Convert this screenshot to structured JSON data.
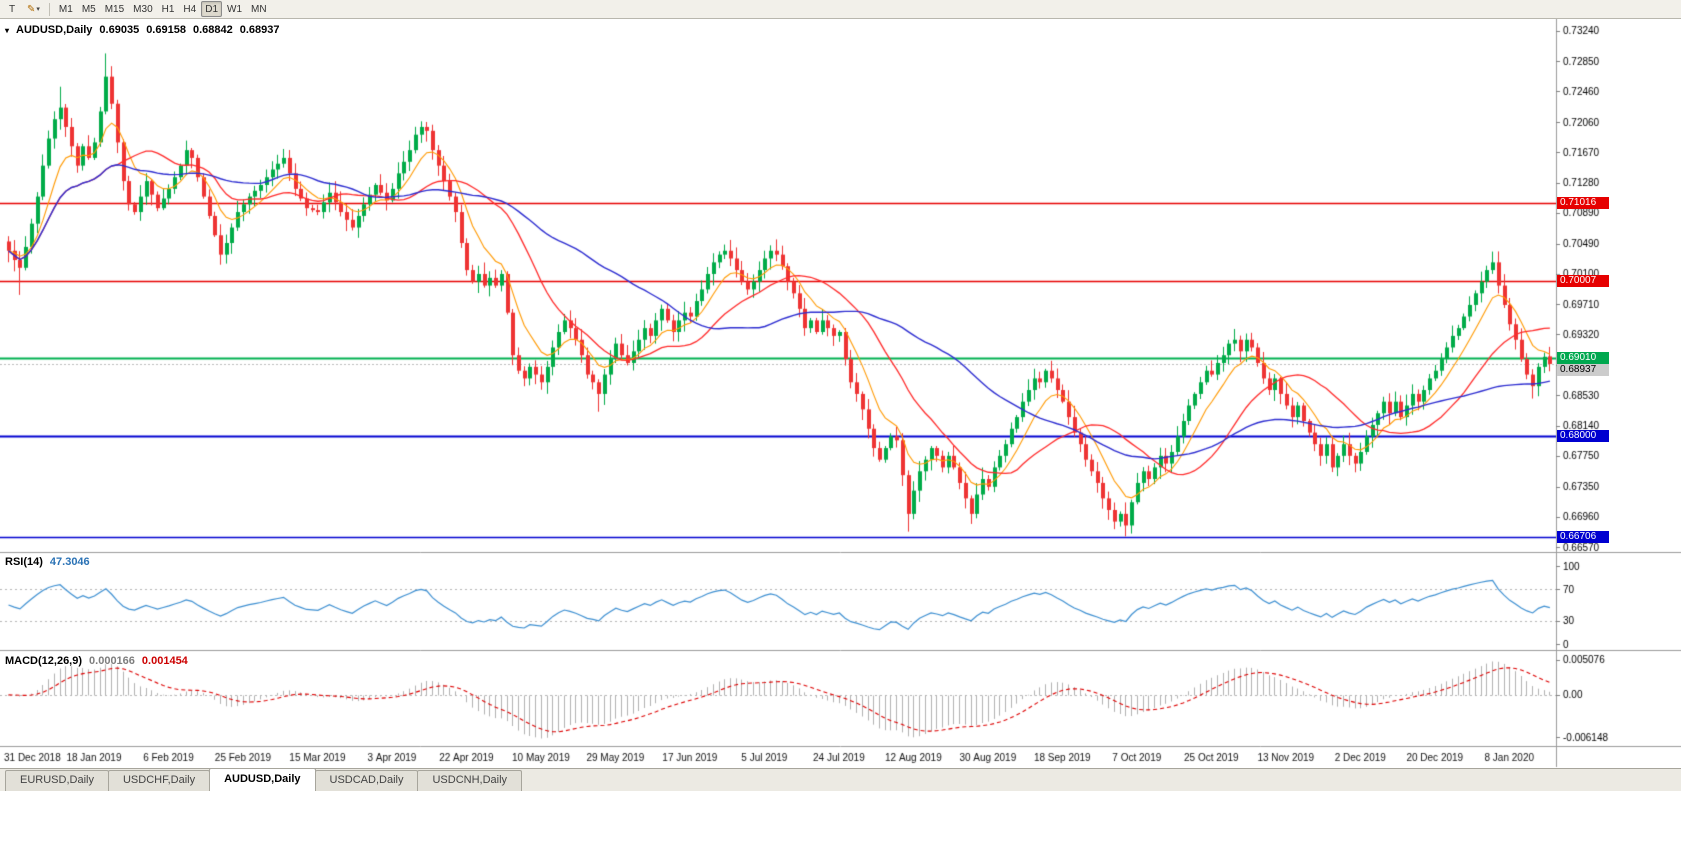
{
  "toolbar": {
    "text_tool_label": "T",
    "timeframes": [
      "M1",
      "M5",
      "M15",
      "M30",
      "H1",
      "H4",
      "D1",
      "W1",
      "MN"
    ],
    "active_timeframe": "D1"
  },
  "chart_header": {
    "symbol": "AUDUSD,Daily",
    "open": "0.69035",
    "high": "0.69158",
    "low": "0.68842",
    "close": "0.68937"
  },
  "price_axis": {
    "ticks": [
      "0.73240",
      "0.72850",
      "0.72460",
      "0.72060",
      "0.71670",
      "0.71280",
      "0.70890",
      "0.70490",
      "0.70100",
      "0.69710",
      "0.69320",
      "0.68930",
      "0.68530",
      "0.68140",
      "0.67750",
      "0.67350",
      "0.66960",
      "0.66570"
    ]
  },
  "price_tags": [
    {
      "value": "0.71016",
      "bg": "#e60000",
      "fg": "#ffffff",
      "draggable": true
    },
    {
      "value": "0.70007",
      "bg": "#e60000",
      "fg": "#ffffff",
      "draggable": true
    },
    {
      "value": "0.69010",
      "bg": "#00a84f",
      "fg": "#ffffff",
      "draggable": true
    },
    {
      "value": "0.68937",
      "bg": "#cccccc",
      "fg": "#000000",
      "draggable": false
    },
    {
      "value": "0.68000",
      "bg": "#0000d0",
      "fg": "#ffffff",
      "draggable": true
    },
    {
      "value": "0.66706",
      "bg": "#0000d0",
      "fg": "#ffffff",
      "draggable": true
    }
  ],
  "rsi": {
    "label": "RSI(14)",
    "value": "47.3046",
    "color": "#3d8fd1",
    "ticks": [
      "100",
      "70",
      "30",
      "0"
    ],
    "levels": [
      70,
      30
    ]
  },
  "macd": {
    "label": "MACD(12,26,9)",
    "value_main": "0.000166",
    "value_signal": "0.001454",
    "ticks": [
      "0.005076",
      "0.00",
      "-0.006148"
    ]
  },
  "date_axis": {
    "labels": [
      "31 Dec 2018",
      "18 Jan 2019",
      "6 Feb 2019",
      "25 Feb 2019",
      "15 Mar 2019",
      "3 Apr 2019",
      "22 Apr 2019",
      "10 May 2019",
      "29 May 2019",
      "17 Jun 2019",
      "5 Jul 2019",
      "24 Jul 2019",
      "12 Aug 2019",
      "30 Aug 2019",
      "18 Sep 2019",
      "7 Oct 2019",
      "25 Oct 2019",
      "13 Nov 2019",
      "2 Dec 2019",
      "20 Dec 2019",
      "8 Jan 2020"
    ]
  },
  "tabs": [
    {
      "label": "EURUSD,Daily",
      "active": false
    },
    {
      "label": "USDCHF,Daily",
      "active": false
    },
    {
      "label": "AUDUSD,Daily",
      "active": true
    },
    {
      "label": "USDCAD,Daily",
      "active": false
    },
    {
      "label": "USDCNH,Daily",
      "active": false
    }
  ],
  "chart_data": {
    "type": "candlestick+indicators",
    "symbol": "AUDUSD",
    "timeframe": "Daily",
    "bar_count": 270,
    "last_candle": {
      "open": 0.69035,
      "high": 0.69158,
      "low": 0.68842,
      "close": 0.68937
    },
    "current_price": 0.68937,
    "price_range": {
      "top": 0.73382,
      "bottom": 0.6652
    },
    "macd_range": {
      "top": 0.0056,
      "bottom": -0.0068
    },
    "colors": {
      "up": "#00ab48",
      "down": "#ee3333",
      "rsi": "#3d8fd1",
      "macd_hist": "#b0b0b0",
      "macd_signal": "#dd0000"
    },
    "moving_averages": [
      {
        "type": "ema",
        "period": 8,
        "color": "#ff9900",
        "width": 1.1
      },
      {
        "type": "sma",
        "period": 20,
        "color": "#ff2a2a",
        "width": 1.3
      },
      {
        "type": "sma",
        "period": 45,
        "color": "#2d2dd0",
        "width": 1.4
      }
    ],
    "hlines": [
      {
        "value": 0.71016,
        "color": "#e60000",
        "width": 1.5
      },
      {
        "value": 0.70007,
        "color": "#e60000",
        "width": 1.5
      },
      {
        "value": 0.6901,
        "color": "#00b050",
        "width": 2
      },
      {
        "value": 0.68,
        "color": "#0000d0",
        "width": 2
      },
      {
        "value": 0.66706,
        "color": "#0000d0",
        "width": 1.5
      }
    ],
    "price_waypoints": [
      [
        0,
        0.704
      ],
      [
        1,
        0.7028
      ],
      [
        2,
        0.7018
      ],
      [
        3,
        0.7045
      ],
      [
        4,
        0.7075
      ],
      [
        5,
        0.711
      ],
      [
        6,
        0.715
      ],
      [
        7,
        0.7185
      ],
      [
        8,
        0.721
      ],
      [
        9,
        0.7225
      ],
      [
        10,
        0.72
      ],
      [
        11,
        0.7175
      ],
      [
        12,
        0.715
      ],
      [
        13,
        0.7175
      ],
      [
        14,
        0.716
      ],
      [
        15,
        0.718
      ],
      [
        16,
        0.722
      ],
      [
        17,
        0.7265
      ],
      [
        18,
        0.723
      ],
      [
        19,
        0.718
      ],
      [
        20,
        0.713
      ],
      [
        21,
        0.71
      ],
      [
        22,
        0.709
      ],
      [
        24,
        0.713
      ],
      [
        26,
        0.7095
      ],
      [
        28,
        0.712
      ],
      [
        30,
        0.715
      ],
      [
        31,
        0.717
      ],
      [
        32,
        0.716
      ],
      [
        34,
        0.711
      ],
      [
        36,
        0.706
      ],
      [
        37,
        0.7035
      ],
      [
        38,
        0.705
      ],
      [
        40,
        0.709
      ],
      [
        42,
        0.711
      ],
      [
        44,
        0.7125
      ],
      [
        46,
        0.7145
      ],
      [
        48,
        0.716
      ],
      [
        50,
        0.712
      ],
      [
        52,
        0.7095
      ],
      [
        54,
        0.709
      ],
      [
        56,
        0.7115
      ],
      [
        58,
        0.709
      ],
      [
        60,
        0.707
      ],
      [
        62,
        0.71
      ],
      [
        64,
        0.7125
      ],
      [
        66,
        0.7105
      ],
      [
        67,
        0.712
      ],
      [
        68,
        0.714
      ],
      [
        70,
        0.717
      ],
      [
        71,
        0.719
      ],
      [
        72,
        0.72
      ],
      [
        73,
        0.7195
      ],
      [
        74,
        0.717
      ],
      [
        75,
        0.715
      ],
      [
        76,
        0.713
      ],
      [
        77,
        0.711
      ],
      [
        78,
        0.709
      ],
      [
        79,
        0.705
      ],
      [
        80,
        0.7015
      ],
      [
        81,
        0.7
      ],
      [
        82,
        0.701
      ],
      [
        83,
        0.6995
      ],
      [
        84,
        0.7005
      ],
      [
        85,
        0.6995
      ],
      [
        86,
        0.701
      ],
      [
        87,
        0.696
      ],
      [
        88,
        0.6905
      ],
      [
        89,
        0.6885
      ],
      [
        90,
        0.6875
      ],
      [
        91,
        0.689
      ],
      [
        92,
        0.688
      ],
      [
        93,
        0.687
      ],
      [
        94,
        0.689
      ],
      [
        95,
        0.6915
      ],
      [
        96,
        0.6935
      ],
      [
        97,
        0.695
      ],
      [
        98,
        0.694
      ],
      [
        99,
        0.6925
      ],
      [
        100,
        0.6905
      ],
      [
        101,
        0.688
      ],
      [
        102,
        0.687
      ],
      [
        103,
        0.6855
      ],
      [
        104,
        0.688
      ],
      [
        105,
        0.69
      ],
      [
        106,
        0.692
      ],
      [
        107,
        0.6905
      ],
      [
        108,
        0.6895
      ],
      [
        109,
        0.691
      ],
      [
        110,
        0.6925
      ],
      [
        111,
        0.694
      ],
      [
        112,
        0.693
      ],
      [
        113,
        0.695
      ],
      [
        114,
        0.6965
      ],
      [
        115,
        0.695
      ],
      [
        116,
        0.6935
      ],
      [
        117,
        0.695
      ],
      [
        118,
        0.696
      ],
      [
        119,
        0.6955
      ],
      [
        120,
        0.6975
      ],
      [
        121,
        0.699
      ],
      [
        122,
        0.701
      ],
      [
        123,
        0.7025
      ],
      [
        124,
        0.7035
      ],
      [
        125,
        0.704
      ],
      [
        126,
        0.703
      ],
      [
        127,
        0.7015
      ],
      [
        128,
        0.7
      ],
      [
        129,
        0.699
      ],
      [
        130,
        0.7
      ],
      [
        131,
        0.7015
      ],
      [
        132,
        0.703
      ],
      [
        133,
        0.704
      ],
      [
        134,
        0.7035
      ],
      [
        135,
        0.702
      ],
      [
        136,
        0.7
      ],
      [
        137,
        0.6985
      ],
      [
        138,
        0.6965
      ],
      [
        139,
        0.694
      ],
      [
        140,
        0.695
      ],
      [
        141,
        0.6935
      ],
      [
        142,
        0.695
      ],
      [
        143,
        0.694
      ],
      [
        144,
        0.693
      ],
      [
        145,
        0.6935
      ],
      [
        146,
        0.69
      ],
      [
        147,
        0.687
      ],
      [
        148,
        0.6855
      ],
      [
        149,
        0.6835
      ],
      [
        150,
        0.681
      ],
      [
        151,
        0.6785
      ],
      [
        152,
        0.677
      ],
      [
        153,
        0.6785
      ],
      [
        154,
        0.68
      ],
      [
        155,
        0.6795
      ],
      [
        156,
        0.675
      ],
      [
        157,
        0.67
      ],
      [
        158,
        0.673
      ],
      [
        159,
        0.6755
      ],
      [
        160,
        0.677
      ],
      [
        161,
        0.6785
      ],
      [
        162,
        0.6775
      ],
      [
        163,
        0.676
      ],
      [
        164,
        0.6775
      ],
      [
        165,
        0.676
      ],
      [
        166,
        0.674
      ],
      [
        167,
        0.672
      ],
      [
        168,
        0.67
      ],
      [
        169,
        0.6725
      ],
      [
        170,
        0.6745
      ],
      [
        171,
        0.6735
      ],
      [
        172,
        0.676
      ],
      [
        173,
        0.6775
      ],
      [
        174,
        0.679
      ],
      [
        175,
        0.681
      ],
      [
        176,
        0.6825
      ],
      [
        177,
        0.6845
      ],
      [
        178,
        0.686
      ],
      [
        179,
        0.6875
      ],
      [
        180,
        0.687
      ],
      [
        181,
        0.6885
      ],
      [
        182,
        0.6875
      ],
      [
        183,
        0.686
      ],
      [
        184,
        0.6845
      ],
      [
        185,
        0.6825
      ],
      [
        186,
        0.6805
      ],
      [
        187,
        0.679
      ],
      [
        188,
        0.677
      ],
      [
        189,
        0.6755
      ],
      [
        190,
        0.674
      ],
      [
        191,
        0.672
      ],
      [
        192,
        0.6705
      ],
      [
        193,
        0.669
      ],
      [
        194,
        0.67
      ],
      [
        195,
        0.6685
      ],
      [
        196,
        0.6715
      ],
      [
        197,
        0.674
      ],
      [
        198,
        0.6755
      ],
      [
        199,
        0.6745
      ],
      [
        200,
        0.676
      ],
      [
        201,
        0.6775
      ],
      [
        202,
        0.6765
      ],
      [
        203,
        0.678
      ],
      [
        204,
        0.68
      ],
      [
        205,
        0.682
      ],
      [
        206,
        0.684
      ],
      [
        207,
        0.6855
      ],
      [
        208,
        0.687
      ],
      [
        209,
        0.6885
      ],
      [
        210,
        0.688
      ],
      [
        211,
        0.6895
      ],
      [
        212,
        0.6905
      ],
      [
        213,
        0.692
      ],
      [
        214,
        0.6925
      ],
      [
        215,
        0.691
      ],
      [
        216,
        0.6925
      ],
      [
        217,
        0.6915
      ],
      [
        218,
        0.6895
      ],
      [
        219,
        0.6875
      ],
      [
        220,
        0.686
      ],
      [
        221,
        0.6875
      ],
      [
        222,
        0.6855
      ],
      [
        223,
        0.684
      ],
      [
        224,
        0.6825
      ],
      [
        225,
        0.684
      ],
      [
        226,
        0.682
      ],
      [
        227,
        0.6805
      ],
      [
        228,
        0.679
      ],
      [
        229,
        0.6775
      ],
      [
        230,
        0.679
      ],
      [
        231,
        0.676
      ],
      [
        232,
        0.6775
      ],
      [
        233,
        0.679
      ],
      [
        234,
        0.6775
      ],
      [
        235,
        0.6765
      ],
      [
        236,
        0.678
      ],
      [
        237,
        0.68
      ],
      [
        238,
        0.6815
      ],
      [
        239,
        0.683
      ],
      [
        240,
        0.6845
      ],
      [
        241,
        0.683
      ],
      [
        242,
        0.6845
      ],
      [
        243,
        0.6825
      ],
      [
        244,
        0.684
      ],
      [
        245,
        0.6855
      ],
      [
        246,
        0.6845
      ],
      [
        247,
        0.686
      ],
      [
        248,
        0.6875
      ],
      [
        249,
        0.6885
      ],
      [
        250,
        0.69
      ],
      [
        251,
        0.6915
      ],
      [
        252,
        0.693
      ],
      [
        253,
        0.694
      ],
      [
        254,
        0.6955
      ],
      [
        255,
        0.697
      ],
      [
        256,
        0.6985
      ],
      [
        257,
        0.7
      ],
      [
        258,
        0.7015
      ],
      [
        259,
        0.7025
      ],
      [
        260,
        0.6995
      ],
      [
        261,
        0.697
      ],
      [
        262,
        0.6945
      ],
      [
        263,
        0.6925
      ],
      [
        264,
        0.69
      ],
      [
        265,
        0.688
      ],
      [
        266,
        0.6865
      ],
      [
        267,
        0.689
      ],
      [
        268,
        0.6903
      ],
      [
        269,
        0.68937
      ]
    ],
    "extremes": [
      {
        "i": 2,
        "low": 0.6983
      },
      {
        "i": 9,
        "high": 0.7252
      },
      {
        "i": 17,
        "high": 0.7295
      },
      {
        "i": 37,
        "low": 0.7022
      },
      {
        "i": 72,
        "high": 0.7207
      },
      {
        "i": 90,
        "low": 0.6865
      },
      {
        "i": 103,
        "low": 0.6832
      },
      {
        "i": 125,
        "high": 0.7048
      },
      {
        "i": 133,
        "high": 0.7047
      },
      {
        "i": 157,
        "low": 0.6677
      },
      {
        "i": 168,
        "low": 0.6687
      },
      {
        "i": 195,
        "low": 0.6671
      },
      {
        "i": 216,
        "high": 0.6929
      },
      {
        "i": 231,
        "low": 0.6754
      },
      {
        "i": 259,
        "high": 0.7032
      },
      {
        "i": 266,
        "low": 0.6849
      }
    ],
    "indicators": {
      "rsi": {
        "period": 14,
        "current": 47.3046
      },
      "macd": {
        "fast": 12,
        "slow": 26,
        "signal": 9,
        "current_main": 0.000166,
        "current_signal": 0.001454
      }
    }
  }
}
